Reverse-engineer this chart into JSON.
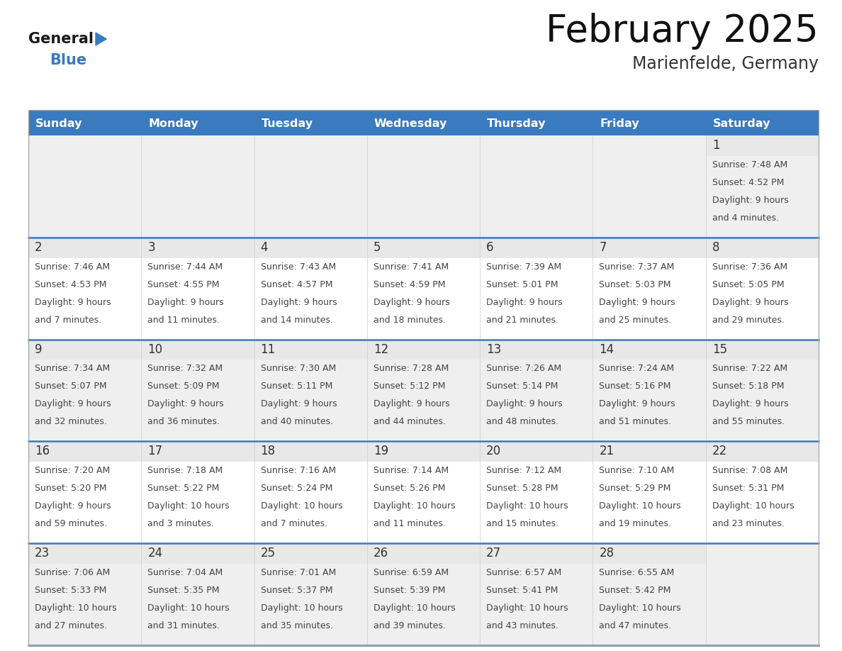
{
  "title": "February 2025",
  "subtitle": "Marienfelde, Germany",
  "header_color": "#3a7abf",
  "header_text_color": "#ffffff",
  "day_names": [
    "Sunday",
    "Monday",
    "Tuesday",
    "Wednesday",
    "Thursday",
    "Friday",
    "Saturday"
  ],
  "bg_color": "#ffffff",
  "row_bg_odd": "#efefef",
  "row_bg_even": "#ffffff",
  "day_num_strip_color": "#e8e8e8",
  "border_color": "#cccccc",
  "number_color": "#333333",
  "text_color": "#444444",
  "title_color": "#111111",
  "subtitle_color": "#333333",
  "calendar": [
    [
      null,
      null,
      null,
      null,
      null,
      null,
      {
        "day": 1,
        "sunrise": "7:48 AM",
        "sunset": "4:52 PM",
        "daylight": "9 hours and 4 minutes."
      }
    ],
    [
      {
        "day": 2,
        "sunrise": "7:46 AM",
        "sunset": "4:53 PM",
        "daylight": "9 hours and 7 minutes."
      },
      {
        "day": 3,
        "sunrise": "7:44 AM",
        "sunset": "4:55 PM",
        "daylight": "9 hours and 11 minutes."
      },
      {
        "day": 4,
        "sunrise": "7:43 AM",
        "sunset": "4:57 PM",
        "daylight": "9 hours and 14 minutes."
      },
      {
        "day": 5,
        "sunrise": "7:41 AM",
        "sunset": "4:59 PM",
        "daylight": "9 hours and 18 minutes."
      },
      {
        "day": 6,
        "sunrise": "7:39 AM",
        "sunset": "5:01 PM",
        "daylight": "9 hours and 21 minutes."
      },
      {
        "day": 7,
        "sunrise": "7:37 AM",
        "sunset": "5:03 PM",
        "daylight": "9 hours and 25 minutes."
      },
      {
        "day": 8,
        "sunrise": "7:36 AM",
        "sunset": "5:05 PM",
        "daylight": "9 hours and 29 minutes."
      }
    ],
    [
      {
        "day": 9,
        "sunrise": "7:34 AM",
        "sunset": "5:07 PM",
        "daylight": "9 hours and 32 minutes."
      },
      {
        "day": 10,
        "sunrise": "7:32 AM",
        "sunset": "5:09 PM",
        "daylight": "9 hours and 36 minutes."
      },
      {
        "day": 11,
        "sunrise": "7:30 AM",
        "sunset": "5:11 PM",
        "daylight": "9 hours and 40 minutes."
      },
      {
        "day": 12,
        "sunrise": "7:28 AM",
        "sunset": "5:12 PM",
        "daylight": "9 hours and 44 minutes."
      },
      {
        "day": 13,
        "sunrise": "7:26 AM",
        "sunset": "5:14 PM",
        "daylight": "9 hours and 48 minutes."
      },
      {
        "day": 14,
        "sunrise": "7:24 AM",
        "sunset": "5:16 PM",
        "daylight": "9 hours and 51 minutes."
      },
      {
        "day": 15,
        "sunrise": "7:22 AM",
        "sunset": "5:18 PM",
        "daylight": "9 hours and 55 minutes."
      }
    ],
    [
      {
        "day": 16,
        "sunrise": "7:20 AM",
        "sunset": "5:20 PM",
        "daylight": "9 hours and 59 minutes."
      },
      {
        "day": 17,
        "sunrise": "7:18 AM",
        "sunset": "5:22 PM",
        "daylight": "10 hours and 3 minutes."
      },
      {
        "day": 18,
        "sunrise": "7:16 AM",
        "sunset": "5:24 PM",
        "daylight": "10 hours and 7 minutes."
      },
      {
        "day": 19,
        "sunrise": "7:14 AM",
        "sunset": "5:26 PM",
        "daylight": "10 hours and 11 minutes."
      },
      {
        "day": 20,
        "sunrise": "7:12 AM",
        "sunset": "5:28 PM",
        "daylight": "10 hours and 15 minutes."
      },
      {
        "day": 21,
        "sunrise": "7:10 AM",
        "sunset": "5:29 PM",
        "daylight": "10 hours and 19 minutes."
      },
      {
        "day": 22,
        "sunrise": "7:08 AM",
        "sunset": "5:31 PM",
        "daylight": "10 hours and 23 minutes."
      }
    ],
    [
      {
        "day": 23,
        "sunrise": "7:06 AM",
        "sunset": "5:33 PM",
        "daylight": "10 hours and 27 minutes."
      },
      {
        "day": 24,
        "sunrise": "7:04 AM",
        "sunset": "5:35 PM",
        "daylight": "10 hours and 31 minutes."
      },
      {
        "day": 25,
        "sunrise": "7:01 AM",
        "sunset": "5:37 PM",
        "daylight": "10 hours and 35 minutes."
      },
      {
        "day": 26,
        "sunrise": "6:59 AM",
        "sunset": "5:39 PM",
        "daylight": "10 hours and 39 minutes."
      },
      {
        "day": 27,
        "sunrise": "6:57 AM",
        "sunset": "5:41 PM",
        "daylight": "10 hours and 43 minutes."
      },
      {
        "day": 28,
        "sunrise": "6:55 AM",
        "sunset": "5:42 PM",
        "daylight": "10 hours and 47 minutes."
      },
      null
    ]
  ],
  "logo_text_general": "General",
  "logo_text_blue": "Blue",
  "logo_triangle_color": "#3a7abf"
}
